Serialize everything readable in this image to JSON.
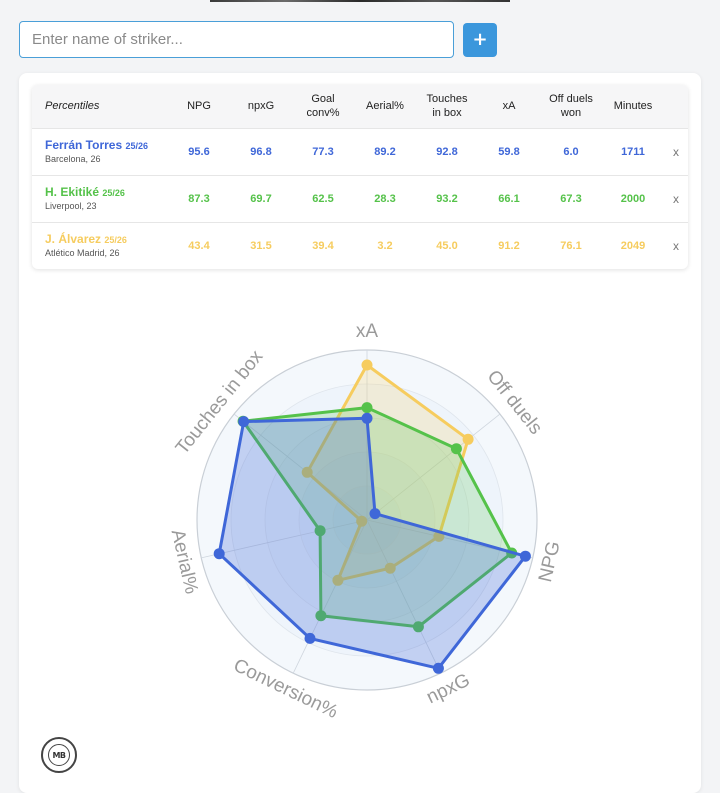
{
  "search": {
    "placeholder": "Enter name of striker...",
    "value": "",
    "add_label": "+"
  },
  "colors": {
    "blue": "#3f67d8",
    "green": "#55c24a",
    "yellow": "#f6cc5e",
    "accent": "#3b97dc"
  },
  "table": {
    "corner_label": "Percentiles",
    "columns": [
      [
        "NPG"
      ],
      [
        "npxG"
      ],
      [
        "Goal",
        "conv%"
      ],
      [
        "Aerial%"
      ],
      [
        "Touches",
        "in box"
      ],
      [
        "xA"
      ],
      [
        "Off duels",
        "won"
      ],
      [
        "Minutes"
      ]
    ],
    "remove_label": "x",
    "rows": [
      {
        "name": "Ferrán Torres",
        "season": "25/26",
        "club": "Barcelona, 26",
        "color": "#3f67d8",
        "values": [
          "95.6",
          "96.8",
          "77.3",
          "89.2",
          "92.8",
          "59.8",
          "6.0",
          "1711"
        ]
      },
      {
        "name": "H. Ekitiké",
        "season": "25/26",
        "club": "Liverpool, 23",
        "color": "#55c24a",
        "values": [
          "87.3",
          "69.7",
          "62.5",
          "28.3",
          "93.2",
          "66.1",
          "67.3",
          "2000"
        ]
      },
      {
        "name": "J. Álvarez",
        "season": "25/26",
        "club": "Atlético Madrid, 26",
        "color": "#f6cc5e",
        "values": [
          "43.4",
          "31.5",
          "39.4",
          "3.2",
          "45.0",
          "91.2",
          "76.1",
          "2049"
        ]
      }
    ]
  },
  "radar": {
    "axes": [
      "xA",
      "Off duels",
      "NPG",
      "npxG",
      "Conversion%",
      "Aerial%",
      "Touches in box"
    ],
    "range": [
      0,
      100
    ]
  },
  "logo": {
    "text": "MB"
  }
}
